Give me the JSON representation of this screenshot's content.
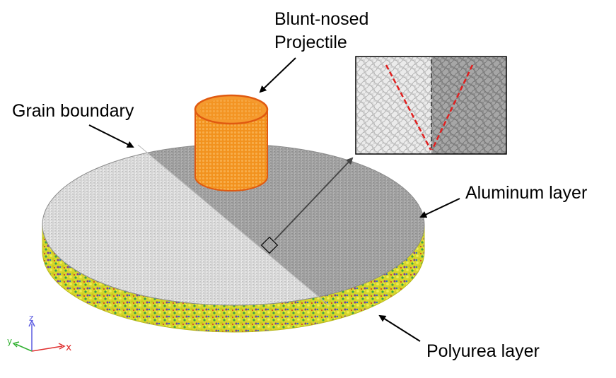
{
  "figure": {
    "labels": {
      "projectile_line1": "Blunt-nosed",
      "projectile_line2": "Projectile",
      "grain_boundary": "Grain boundary",
      "aluminum": "Aluminum layer",
      "polyurea": "Polyurea layer"
    },
    "axes": {
      "z": "z",
      "y": "y",
      "x": "x"
    },
    "colors": {
      "grain_light": "#d2d2d2",
      "grain_dark": "#a4a4a4",
      "projectile": "#f08c1c",
      "projectile_edge": "#e05a10",
      "polyurea": "#d8d820",
      "inset_line": "#e02020",
      "axis_z": "#5a5ae0",
      "axis_y": "#30b030",
      "axis_x": "#e03030"
    }
  }
}
